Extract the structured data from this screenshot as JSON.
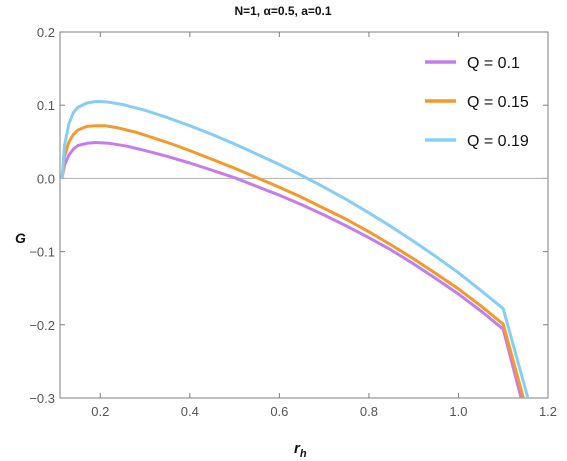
{
  "chart_data": {
    "type": "line",
    "title": "N=1, α=0.5, a=0.1",
    "xlabel": "r",
    "xlabel_sub": "h",
    "ylabel": "G",
    "xlim": [
      0.11,
      1.2
    ],
    "ylim": [
      -0.3,
      0.2
    ],
    "xticks": [
      0.2,
      0.4,
      0.6,
      0.8,
      1.0,
      1.2
    ],
    "xtick_labels": [
      "0.2",
      "0.4",
      "0.6",
      "0.8",
      "1.0",
      "1.2"
    ],
    "yticks": [
      0.2,
      0.1,
      0.0,
      -0.1,
      -0.2,
      -0.3
    ],
    "ytick_labels": [
      "0.2",
      "0.1",
      "0.0",
      "−0.1",
      "−0.2",
      "−0.3"
    ],
    "legend_position": "top-right",
    "grid": false,
    "series": [
      {
        "name": "Q = 0.1",
        "color": "#c77cec",
        "x": [
          0.115,
          0.12,
          0.13,
          0.14,
          0.15,
          0.17,
          0.19,
          0.22,
          0.26,
          0.3,
          0.35,
          0.4,
          0.45,
          0.5,
          0.55,
          0.6,
          0.65,
          0.7,
          0.75,
          0.8,
          0.85,
          0.9,
          0.95,
          1.0,
          1.05,
          1.1,
          1.14
        ],
        "y": [
          0.002,
          0.018,
          0.032,
          0.04,
          0.045,
          0.048,
          0.049,
          0.048,
          0.044,
          0.038,
          0.03,
          0.021,
          0.011,
          0.001,
          -0.011,
          -0.023,
          -0.036,
          -0.05,
          -0.065,
          -0.081,
          -0.098,
          -0.117,
          -0.137,
          -0.158,
          -0.181,
          -0.206,
          -0.3
        ]
      },
      {
        "name": "Q = 0.15",
        "color": "#f39a2c",
        "x": [
          0.115,
          0.12,
          0.13,
          0.14,
          0.15,
          0.17,
          0.19,
          0.21,
          0.24,
          0.28,
          0.32,
          0.36,
          0.4,
          0.45,
          0.5,
          0.55,
          0.6,
          0.65,
          0.7,
          0.75,
          0.8,
          0.85,
          0.9,
          0.95,
          1.0,
          1.05,
          1.1,
          1.145
        ],
        "y": [
          0.002,
          0.03,
          0.05,
          0.06,
          0.066,
          0.071,
          0.072,
          0.072,
          0.069,
          0.063,
          0.055,
          0.047,
          0.038,
          0.026,
          0.014,
          0.001,
          -0.012,
          -0.026,
          -0.041,
          -0.056,
          -0.073,
          -0.091,
          -0.11,
          -0.13,
          -0.151,
          -0.174,
          -0.199,
          -0.3
        ]
      },
      {
        "name": "Q = 0.19",
        "color": "#87cdf5",
        "x": [
          0.115,
          0.12,
          0.13,
          0.14,
          0.15,
          0.17,
          0.19,
          0.2,
          0.22,
          0.25,
          0.3,
          0.35,
          0.4,
          0.45,
          0.5,
          0.55,
          0.6,
          0.65,
          0.7,
          0.75,
          0.8,
          0.85,
          0.9,
          0.95,
          1.0,
          1.05,
          1.1,
          1.155
        ],
        "y": [
          0.002,
          0.045,
          0.075,
          0.09,
          0.097,
          0.103,
          0.105,
          0.105,
          0.104,
          0.101,
          0.093,
          0.083,
          0.072,
          0.06,
          0.047,
          0.033,
          0.019,
          0.004,
          -0.012,
          -0.029,
          -0.047,
          -0.066,
          -0.086,
          -0.107,
          -0.129,
          -0.153,
          -0.178,
          -0.3
        ]
      }
    ]
  }
}
